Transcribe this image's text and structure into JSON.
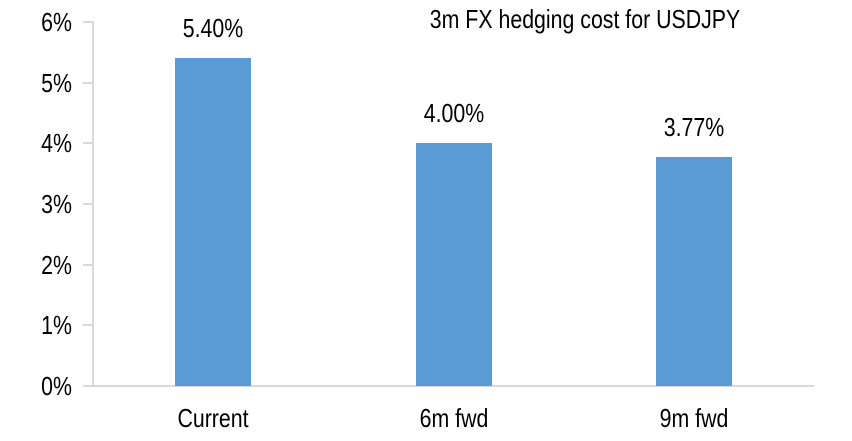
{
  "chart_data": {
    "type": "bar",
    "title": "3m FX hedging cost for USDJPY",
    "categories": [
      "Current",
      "6m fwd",
      "9m fwd"
    ],
    "values": [
      5.4,
      4.0,
      3.77
    ],
    "data_labels": [
      "5.40%",
      "4.00%",
      "3.77%"
    ],
    "xlabel": "",
    "ylabel": "",
    "ylim": [
      0,
      6
    ],
    "y_tick_step": 1,
    "y_tick_labels": [
      "0%",
      "1%",
      "2%",
      "3%",
      "4%",
      "5%",
      "6%"
    ],
    "grid": false,
    "legend": false,
    "colors": {
      "bar": "#5B9BD5",
      "axis": "#D9D9D9",
      "text": "#000000",
      "background": "#FFFFFF"
    }
  }
}
